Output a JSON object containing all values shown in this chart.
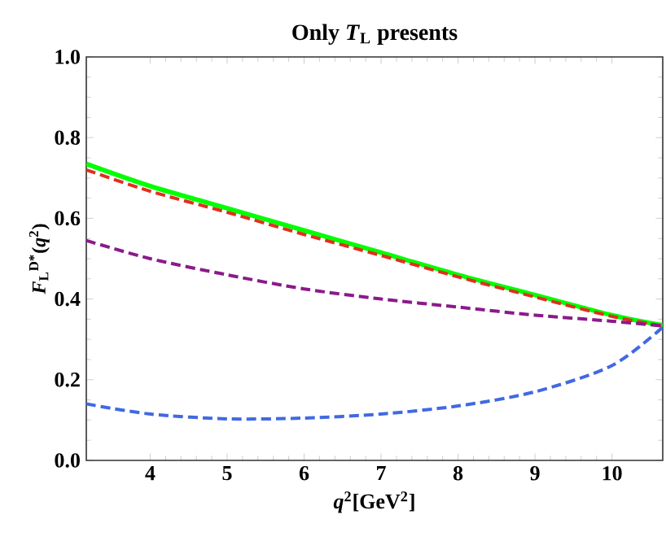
{
  "chart_data": {
    "type": "line",
    "title": "Only *T*$_{L}$ presents",
    "xlabel": "*q*$^{2}$[GeV$^{2}$]",
    "ylabel": "*F*$_{L}$$^{D*}$(*q*$^{2}$)",
    "x": [
      3.17,
      4,
      5,
      6,
      7,
      8,
      9,
      10,
      10.66
    ],
    "series": [
      {
        "color": "#00ff00",
        "line_style": "solid",
        "values": [
          0.735,
          0.68,
          0.625,
          0.57,
          0.515,
          0.46,
          0.41,
          0.36,
          0.335
        ]
      },
      {
        "color": "#e0301e",
        "line_style": "dashed",
        "values": [
          0.72,
          0.667,
          0.615,
          0.56,
          0.508,
          0.455,
          0.405,
          0.357,
          0.333
        ]
      },
      {
        "color": "#8b1a8b",
        "line_style": "dashed",
        "values": [
          0.545,
          0.5,
          0.46,
          0.425,
          0.4,
          0.38,
          0.36,
          0.345,
          0.333
        ]
      },
      {
        "color": "#4169e1",
        "line_style": "dashed",
        "values": [
          0.14,
          0.115,
          0.103,
          0.105,
          0.115,
          0.135,
          0.17,
          0.235,
          0.33
        ]
      }
    ],
    "xlim": [
      3.17,
      10.66
    ],
    "ylim": [
      0,
      1.0
    ],
    "xticks": [
      4,
      5,
      6,
      7,
      8,
      9,
      10
    ],
    "yticks": [
      {
        "value": 0,
        "label": "0.0"
      },
      {
        "value": 0.2,
        "label": "0.2"
      },
      {
        "value": 0.4,
        "label": "0.4"
      },
      {
        "value": 0.6,
        "label": "0.6"
      },
      {
        "value": 0.8,
        "label": "0.8"
      },
      {
        "value": 1.0,
        "label": "1.0"
      }
    ],
    "grid": false
  }
}
